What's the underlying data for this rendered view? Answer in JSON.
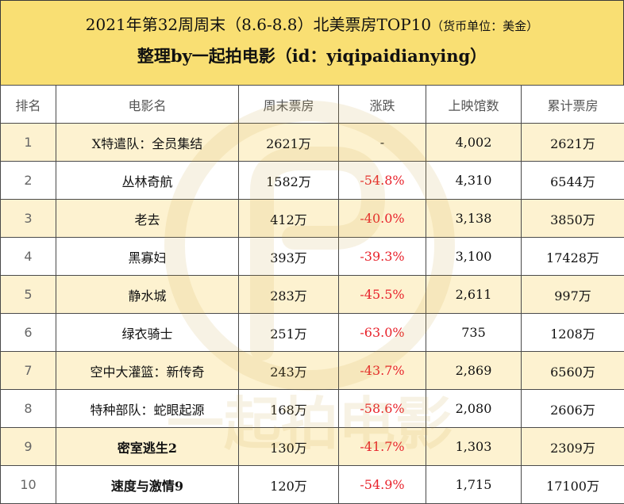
{
  "header": {
    "title_main": "2021年第32周周末（8.6-8.8）北美票房TOP10",
    "title_unit": "（货币单位：美金）",
    "subtitle": "整理by一起拍电影（id：yiqipaidianying）"
  },
  "table": {
    "columns": [
      "排名",
      "电影名",
      "周末票房",
      "涨跌",
      "上映馆数",
      "累计票房"
    ],
    "rows": [
      {
        "rank": "1",
        "name": "X特遣队：全员集结",
        "weekend": "2621万",
        "change": "-",
        "theaters": "4,002",
        "total": "2621万"
      },
      {
        "rank": "2",
        "name": "丛林奇航",
        "weekend": "1582万",
        "change": "-54.8%",
        "theaters": "4,310",
        "total": "6544万"
      },
      {
        "rank": "3",
        "name": "老去",
        "weekend": "412万",
        "change": "-40.0%",
        "theaters": "3,138",
        "total": "3850万"
      },
      {
        "rank": "4",
        "name": "黑寡妇",
        "weekend": "393万",
        "change": "-39.3%",
        "theaters": "3,100",
        "total": "17428万"
      },
      {
        "rank": "5",
        "name": "静水城",
        "weekend": "283万",
        "change": "-45.5%",
        "theaters": "2,611",
        "total": "997万"
      },
      {
        "rank": "6",
        "name": "绿衣骑士",
        "weekend": "251万",
        "change": "-63.0%",
        "theaters": "735",
        "total": "1208万"
      },
      {
        "rank": "7",
        "name": "空中大灌篮：新传奇",
        "weekend": "243万",
        "change": "-43.7%",
        "theaters": "2,869",
        "total": "6560万"
      },
      {
        "rank": "8",
        "name": "特种部队：蛇眼起源",
        "weekend": "168万",
        "change": "-58.6%",
        "theaters": "2,080",
        "total": "2606万"
      },
      {
        "rank": "9",
        "name": "密室逃生2",
        "weekend": "130万",
        "change": "-41.7%",
        "theaters": "1,303",
        "total": "2309万"
      },
      {
        "rank": "10",
        "name": "速度与激情9",
        "weekend": "120万",
        "change": "-54.9%",
        "theaters": "1,715",
        "total": "17100万"
      }
    ]
  },
  "watermark": {
    "text": "一起拍电影"
  },
  "colors": {
    "header_bg": "#f9df73",
    "odd_row_bg": "#fdf2d0",
    "decline": "#e8222b"
  }
}
